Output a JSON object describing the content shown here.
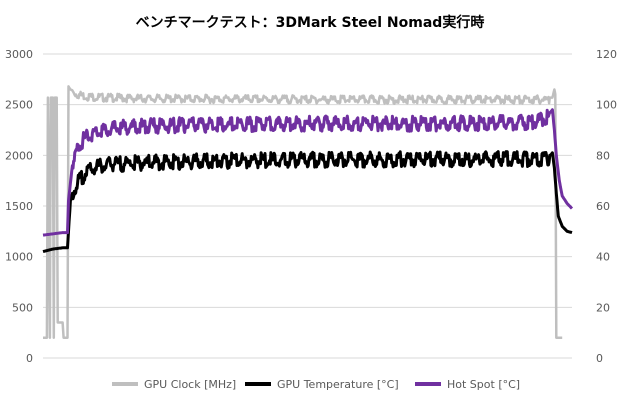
{
  "chart_data": {
    "type": "line",
    "title": "ベンチマークテスト：3DMark Steel Nomad実行時",
    "xlabel": "",
    "ylabel": "",
    "ylim": [
      0,
      3000
    ],
    "y2lim": [
      0,
      120
    ],
    "yticks": [
      "0",
      "500",
      "1000",
      "1500",
      "2000",
      "2500",
      "3000"
    ],
    "y2ticks": [
      "0",
      "20",
      "40",
      "60",
      "80",
      "100",
      "120"
    ],
    "grid": true,
    "legend_position": "bottom",
    "series": [
      {
        "name": "GPU Clock [MHz]",
        "axis": "left",
        "color": "#bfbfbf",
        "points": [
          [
            0,
            200
          ],
          [
            4,
            200
          ],
          [
            5,
            2570
          ],
          [
            7,
            200
          ],
          [
            8,
            2570
          ],
          [
            10,
            2570
          ],
          [
            11,
            200
          ],
          [
            12,
            2570
          ],
          [
            14,
            2570
          ],
          [
            15,
            350
          ],
          [
            20,
            350
          ],
          [
            21,
            200
          ],
          [
            25,
            200
          ],
          [
            26,
            2680
          ],
          [
            28,
            2650
          ],
          [
            35,
            2620
          ],
          [
            45,
            2600
          ],
          [
            60,
            2590
          ],
          [
            100,
            2580
          ],
          [
            200,
            2575
          ],
          [
            300,
            2570
          ],
          [
            400,
            2570
          ],
          [
            500,
            2570
          ],
          [
            520,
            2570
          ],
          [
            522,
            2650
          ],
          [
            523,
            2600
          ],
          [
            524,
            200
          ],
          [
            530,
            200
          ]
        ]
      },
      {
        "name": "GPU Temperature [°C]",
        "axis": "right",
        "color": "#000000",
        "points": [
          [
            0,
            42
          ],
          [
            10,
            43
          ],
          [
            20,
            43.5
          ],
          [
            25,
            43.5
          ],
          [
            26,
            50
          ],
          [
            28,
            62
          ],
          [
            32,
            68
          ],
          [
            38,
            72
          ],
          [
            45,
            75
          ],
          [
            55,
            77
          ],
          [
            70,
            78
          ],
          [
            100,
            78.5
          ],
          [
            150,
            79
          ],
          [
            200,
            79.5
          ],
          [
            300,
            79.8
          ],
          [
            400,
            80
          ],
          [
            500,
            80
          ],
          [
            518,
            80
          ],
          [
            520,
            81
          ],
          [
            522,
            75
          ],
          [
            524,
            65
          ],
          [
            526,
            56
          ],
          [
            530,
            52
          ],
          [
            535,
            50
          ],
          [
            540,
            49.5
          ]
        ]
      },
      {
        "name": "Hot Spot [°C]",
        "axis": "right",
        "color": "#7030a0",
        "points": [
          [
            0,
            48.5
          ],
          [
            10,
            49
          ],
          [
            20,
            49.5
          ],
          [
            25,
            49.5
          ],
          [
            26,
            62
          ],
          [
            30,
            76
          ],
          [
            35,
            84
          ],
          [
            42,
            88
          ],
          [
            55,
            91
          ],
          [
            70,
            92
          ],
          [
            100,
            93
          ],
          [
            150,
            93.5
          ],
          [
            200,
            93.8
          ],
          [
            300,
            94
          ],
          [
            400,
            94
          ],
          [
            500,
            94.5
          ],
          [
            518,
            97
          ],
          [
            520,
            98
          ],
          [
            522,
            90
          ],
          [
            524,
            80
          ],
          [
            527,
            70
          ],
          [
            530,
            64
          ],
          [
            535,
            61
          ],
          [
            540,
            59
          ]
        ]
      }
    ]
  }
}
